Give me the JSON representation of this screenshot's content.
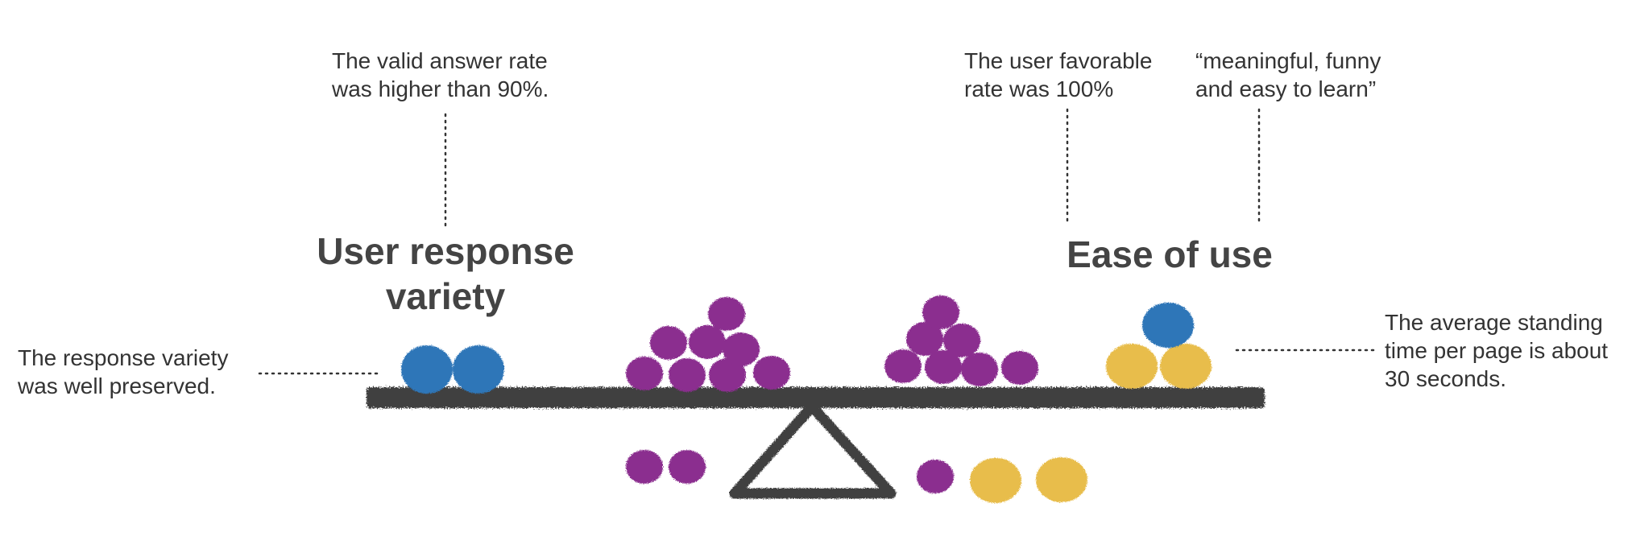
{
  "colors": {
    "purple": "#8B2E8F",
    "blue": "#2F76B8",
    "yellow": "#E8BD4C",
    "beam": "#404040",
    "text": "#333333",
    "heading": "#444444"
  },
  "left": {
    "heading_line1": "User response",
    "heading_line2": "variety",
    "top_note_line1": "The valid answer rate",
    "top_note_line2": "was higher than 90%.",
    "side_note_line1": "The response variety",
    "side_note_line2": "was well preserved."
  },
  "right": {
    "heading": "Ease of use",
    "top_note_a_line1": "The user favorable",
    "top_note_a_line2": "rate was 100%",
    "top_note_b_line1": "“meaningful, funny",
    "top_note_b_line2": "and easy to learn”",
    "side_note_line1": "The average standing",
    "side_note_line2": "time per page is about",
    "side_note_line3": "30 seconds."
  }
}
